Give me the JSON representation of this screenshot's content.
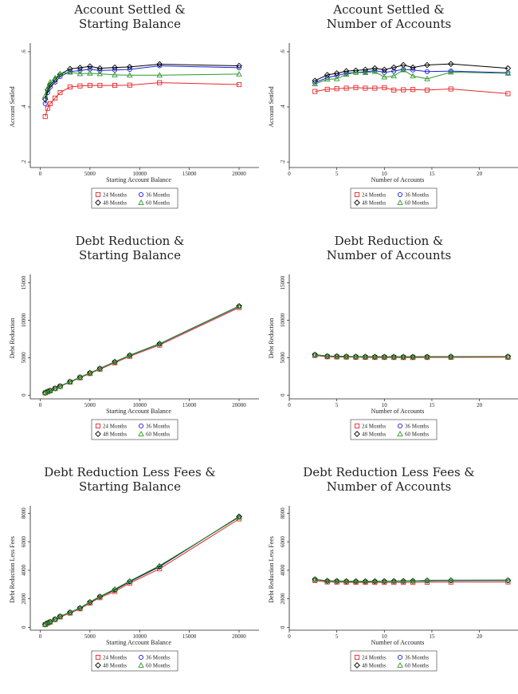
{
  "legend_labels": {
    "m24": "24 Months",
    "m36": "36 Months",
    "m48": "48 Months",
    "m60": "60 Months"
  },
  "colors": {
    "m24": "#e8272b",
    "m36": "#1f1fe0",
    "m48": "#000000",
    "m60": "#2a9a2a"
  },
  "chart_data": [
    {
      "type": "line",
      "title": [
        "Account Settled &",
        "Starting Balance"
      ],
      "xlabel": "Starting Account Balance",
      "ylabel": "Account Settled",
      "xlim": [
        -1000,
        20800
      ],
      "ylim": [
        0.18,
        0.62
      ],
      "xticks": [
        0,
        5000,
        10000,
        15000,
        20000
      ],
      "xticklabels": [
        "0",
        "5000",
        "10000",
        "15000",
        "20000"
      ],
      "yticks": [
        0.2,
        0.4,
        0.6
      ],
      "yticklabels": [
        ".2",
        ".4",
        ".6"
      ],
      "x": [
        500,
        750,
        1000,
        1500,
        2000,
        3000,
        4000,
        5000,
        6000,
        7500,
        9000,
        12000,
        20000
      ],
      "series": [
        {
          "key": "m24",
          "marker": "square",
          "values": [
            0.365,
            0.395,
            0.412,
            0.432,
            0.452,
            0.472,
            0.476,
            0.478,
            0.478,
            0.478,
            0.479,
            0.488,
            0.481
          ]
        },
        {
          "key": "m36",
          "marker": "circle",
          "values": [
            0.412,
            0.452,
            0.472,
            0.49,
            0.51,
            0.528,
            0.532,
            0.537,
            0.532,
            0.534,
            0.536,
            0.549,
            0.542
          ]
        },
        {
          "key": "m48",
          "marker": "diamond",
          "values": [
            0.428,
            0.462,
            0.48,
            0.498,
            0.518,
            0.538,
            0.542,
            0.547,
            0.54,
            0.543,
            0.545,
            0.555,
            0.549
          ]
        },
        {
          "key": "m60",
          "marker": "triangle",
          "values": [
            0.44,
            0.468,
            0.49,
            0.505,
            0.52,
            0.526,
            0.52,
            0.522,
            0.52,
            0.516,
            0.515,
            0.515,
            0.519
          ]
        }
      ]
    },
    {
      "type": "line",
      "title": [
        "Account Settled &",
        "Number of Accounts"
      ],
      "xlabel": "Number of Accounts",
      "ylabel": "Account Settled",
      "xlim": [
        0,
        22.8
      ],
      "ylim": [
        0.18,
        0.62
      ],
      "xticks": [
        0,
        5,
        10,
        15,
        20
      ],
      "xticklabels": [
        "0",
        "5",
        "10",
        "15",
        "20"
      ],
      "yticks": [
        0.2,
        0.4,
        0.6
      ],
      "yticklabels": [
        ".2",
        ".4",
        ".6"
      ],
      "x": [
        2.7,
        4,
        5,
        6,
        7,
        8,
        9,
        10,
        11,
        12,
        13,
        14.5,
        17,
        23
      ],
      "series": [
        {
          "key": "m24",
          "marker": "square",
          "values": [
            0.456,
            0.464,
            0.466,
            0.468,
            0.47,
            0.468,
            0.468,
            0.47,
            0.461,
            0.462,
            0.463,
            0.461,
            0.465,
            0.448
          ]
        },
        {
          "key": "m36",
          "marker": "circle",
          "values": [
            0.488,
            0.506,
            0.514,
            0.522,
            0.525,
            0.527,
            0.532,
            0.525,
            0.53,
            0.536,
            0.534,
            0.528,
            0.53,
            0.524
          ]
        },
        {
          "key": "m48",
          "marker": "diamond",
          "values": [
            0.495,
            0.516,
            0.522,
            0.53,
            0.532,
            0.535,
            0.54,
            0.535,
            0.543,
            0.552,
            0.543,
            0.552,
            0.556,
            0.54
          ]
        },
        {
          "key": "m60",
          "marker": "triangle",
          "values": [
            0.483,
            0.5,
            0.502,
            0.518,
            0.525,
            0.524,
            0.528,
            0.508,
            0.512,
            0.534,
            0.512,
            0.502,
            0.526,
            0.522
          ]
        }
      ]
    },
    {
      "type": "line",
      "title": [
        "Debt Reduction &",
        "Starting Balance"
      ],
      "xlabel": "Starting Account Balance",
      "ylabel": "Debt Reduction",
      "xlim": [
        -1000,
        20800
      ],
      "ylim": [
        -500,
        15700
      ],
      "xticks": [
        0,
        5000,
        10000,
        15000,
        20000
      ],
      "xticklabels": [
        "0",
        "5000",
        "10000",
        "15000",
        "20000"
      ],
      "yticks": [
        0,
        5000,
        10000,
        15000
      ],
      "yticklabels": [
        "0",
        "5000",
        "10000",
        "15000"
      ],
      "x": [
        500,
        750,
        1000,
        1500,
        2000,
        3000,
        4000,
        5000,
        6000,
        7500,
        9000,
        12000,
        20000
      ],
      "series": [
        {
          "key": "m24",
          "marker": "square",
          "values": [
            300,
            450,
            580,
            870,
            1160,
            1740,
            2310,
            2880,
            3460,
            4320,
            5180,
            6680,
            11700
          ]
        },
        {
          "key": "m36",
          "marker": "circle",
          "values": [
            310,
            465,
            600,
            895,
            1190,
            1780,
            2370,
            2950,
            3540,
            4420,
            5300,
            6820,
            11850
          ]
        },
        {
          "key": "m48",
          "marker": "diamond",
          "values": [
            315,
            470,
            610,
            905,
            1200,
            1795,
            2390,
            2975,
            3565,
            4450,
            5330,
            6860,
            11900
          ]
        },
        {
          "key": "m60",
          "marker": "triangle",
          "values": [
            312,
            468,
            605,
            900,
            1195,
            1790,
            2380,
            2965,
            3555,
            4435,
            5310,
            6840,
            11880
          ]
        }
      ]
    },
    {
      "type": "line",
      "title": [
        "Debt Reduction &",
        "Number of Accounts"
      ],
      "xlabel": "Number of Accounts",
      "ylabel": "Debt Reduction",
      "xlim": [
        0,
        22.8
      ],
      "ylim": [
        -500,
        15700
      ],
      "xticks": [
        0,
        5,
        10,
        15,
        20
      ],
      "xticklabels": [
        "0",
        "5",
        "10",
        "15",
        "20"
      ],
      "yticks": [
        0,
        5000,
        10000,
        15000
      ],
      "yticklabels": [
        "0",
        "5000",
        "10000",
        "15000"
      ],
      "x": [
        2.7,
        4,
        5,
        6,
        7,
        8,
        9,
        10,
        11,
        12,
        13,
        14.5,
        17,
        23
      ],
      "series": [
        {
          "key": "m24",
          "marker": "square",
          "values": [
            5300,
            5120,
            5100,
            5080,
            5060,
            5040,
            5030,
            5030,
            5030,
            5020,
            5020,
            5030,
            5040,
            5050
          ]
        },
        {
          "key": "m36",
          "marker": "circle",
          "values": [
            5380,
            5200,
            5180,
            5150,
            5130,
            5120,
            5110,
            5110,
            5110,
            5100,
            5110,
            5120,
            5130,
            5150
          ]
        },
        {
          "key": "m48",
          "marker": "diamond",
          "values": [
            5400,
            5220,
            5200,
            5170,
            5150,
            5140,
            5130,
            5130,
            5120,
            5120,
            5130,
            5140,
            5150,
            5160
          ]
        },
        {
          "key": "m60",
          "marker": "triangle",
          "values": [
            5390,
            5210,
            5190,
            5160,
            5140,
            5130,
            5120,
            5120,
            5115,
            5110,
            5120,
            5130,
            5140,
            5150
          ]
        }
      ]
    },
    {
      "type": "line",
      "title": [
        "Debt Reduction Less Fees &",
        "Starting Balance"
      ],
      "xlabel": "Starting Account Balance",
      "ylabel": "Debt Reduction Less Fees",
      "xlim": [
        -1000,
        20800
      ],
      "ylim": [
        -200,
        8300
      ],
      "xticks": [
        0,
        5000,
        10000,
        15000,
        20000
      ],
      "xticklabels": [
        "0",
        "5000",
        "10000",
        "15000",
        "20000"
      ],
      "yticks": [
        0,
        2000,
        4000,
        6000,
        8000
      ],
      "yticklabels": [
        "0",
        "2000",
        "4000",
        "6000",
        "8000"
      ],
      "x": [
        500,
        750,
        1000,
        1500,
        2000,
        3000,
        4000,
        5000,
        6000,
        7500,
        9000,
        12000,
        20000
      ],
      "series": [
        {
          "key": "m24",
          "marker": "square",
          "values": [
            190,
            290,
            370,
            550,
            730,
            1000,
            1300,
            1700,
            2080,
            2520,
            3100,
            4100,
            7600
          ]
        },
        {
          "key": "m36",
          "marker": "circle",
          "values": [
            200,
            300,
            385,
            570,
            760,
            1040,
            1350,
            1760,
            2150,
            2620,
            3200,
            4250,
            7750
          ]
        },
        {
          "key": "m48",
          "marker": "diamond",
          "values": [
            205,
            305,
            390,
            575,
            770,
            1050,
            1360,
            1770,
            2160,
            2630,
            3220,
            4270,
            7760
          ]
        },
        {
          "key": "m60",
          "marker": "triangle",
          "values": [
            200,
            300,
            385,
            575,
            765,
            1045,
            1360,
            1780,
            2170,
            2680,
            3250,
            4320,
            7720
          ]
        }
      ]
    },
    {
      "type": "line",
      "title": [
        "Debt Reduction Less Fees &",
        "Number of Accounts"
      ],
      "xlabel": "Number of Accounts",
      "ylabel": "Debt Reduction Less Fees",
      "xlim": [
        0,
        22.8
      ],
      "ylim": [
        -200,
        8300
      ],
      "xticks": [
        0,
        5,
        10,
        15,
        20
      ],
      "xticklabels": [
        "0",
        "5",
        "10",
        "15",
        "20"
      ],
      "yticks": [
        0,
        2000,
        4000,
        6000,
        8000
      ],
      "yticklabels": [
        "0",
        "2000",
        "4000",
        "6000",
        "8000"
      ],
      "x": [
        2.7,
        4,
        5,
        6,
        7,
        8,
        9,
        10,
        11,
        12,
        13,
        14.5,
        17,
        23
      ],
      "series": [
        {
          "key": "m24",
          "marker": "square",
          "values": [
            3280,
            3180,
            3170,
            3160,
            3150,
            3150,
            3150,
            3150,
            3150,
            3150,
            3150,
            3160,
            3170,
            3180
          ]
        },
        {
          "key": "m36",
          "marker": "circle",
          "values": [
            3350,
            3240,
            3230,
            3220,
            3210,
            3210,
            3215,
            3220,
            3225,
            3230,
            3240,
            3260,
            3270,
            3280
          ]
        },
        {
          "key": "m48",
          "marker": "diamond",
          "values": [
            3370,
            3260,
            3250,
            3240,
            3230,
            3230,
            3235,
            3240,
            3245,
            3250,
            3260,
            3280,
            3290,
            3300
          ]
        },
        {
          "key": "m60",
          "marker": "triangle",
          "values": [
            3360,
            3250,
            3240,
            3235,
            3225,
            3225,
            3230,
            3235,
            3240,
            3245,
            3255,
            3300,
            3310,
            3320
          ]
        }
      ]
    }
  ]
}
